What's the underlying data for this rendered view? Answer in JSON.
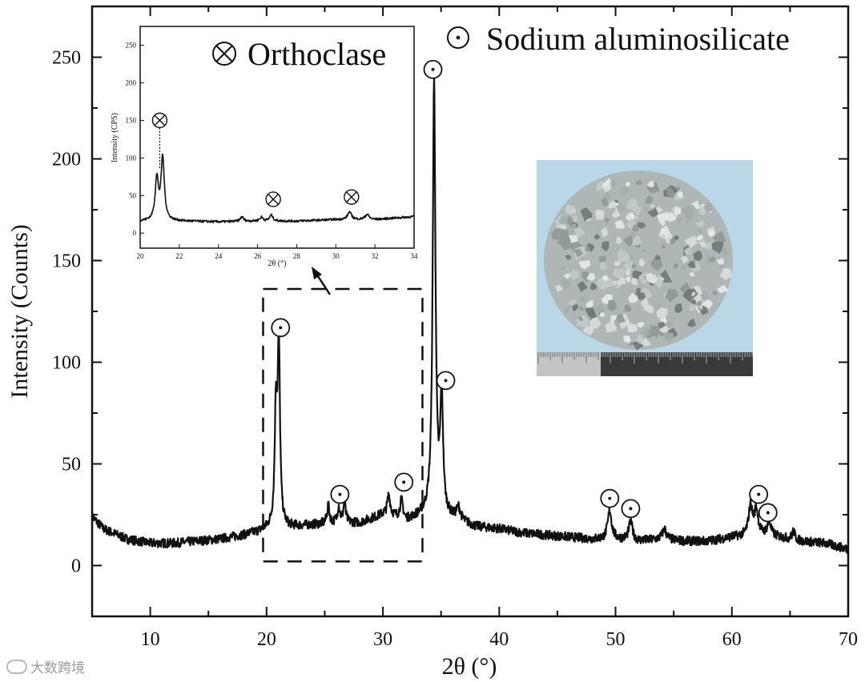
{
  "chart_data": {
    "type": "line",
    "xlabel": "2θ (°)",
    "ylabel": "Intensity (Counts)",
    "xlim": [
      5,
      70
    ],
    "ylim": [
      -25,
      275
    ],
    "xticks": [
      10,
      20,
      30,
      40,
      50,
      60,
      70
    ],
    "yticks": [
      0,
      50,
      100,
      150,
      200,
      250
    ],
    "grid": false,
    "legend": [
      {
        "symbol": "circle-dot",
        "label": "Sodium aluminosilicate",
        "placement": "top-right"
      },
      {
        "symbol": "circle-cross",
        "label": "Orthoclase",
        "placement": "top-center"
      }
    ],
    "series": [
      {
        "baseline": [
          [
            5,
            24
          ],
          [
            6,
            18
          ],
          [
            8,
            13
          ],
          [
            10,
            11
          ],
          [
            12,
            11
          ],
          [
            14,
            12
          ],
          [
            16,
            13
          ],
          [
            18,
            15
          ],
          [
            19.5,
            17
          ],
          [
            20.5,
            19
          ],
          [
            22,
            19
          ],
          [
            24,
            20
          ],
          [
            26,
            21
          ],
          [
            28,
            21
          ],
          [
            29,
            23
          ],
          [
            30,
            25
          ],
          [
            31,
            24
          ],
          [
            32,
            22
          ],
          [
            33,
            24
          ],
          [
            34,
            26
          ],
          [
            36,
            23
          ],
          [
            38,
            19
          ],
          [
            40,
            18
          ],
          [
            42,
            16
          ],
          [
            44,
            15
          ],
          [
            46,
            14
          ],
          [
            48,
            13
          ],
          [
            50,
            13
          ],
          [
            52,
            12
          ],
          [
            54,
            13
          ],
          [
            56,
            12
          ],
          [
            58,
            12
          ],
          [
            60,
            14
          ],
          [
            62,
            15
          ],
          [
            64,
            14
          ],
          [
            66,
            12
          ],
          [
            68,
            11
          ],
          [
            70,
            8
          ]
        ],
        "peaks": [
          {
            "x": 20.8,
            "height": 55,
            "width": 0.12
          },
          {
            "x": 21.05,
            "height": 88,
            "width": 0.12
          },
          {
            "x": 25.3,
            "height": 9,
            "width": 0.12
          },
          {
            "x": 26.2,
            "height": 8,
            "width": 0.12
          },
          {
            "x": 26.7,
            "height": 10,
            "width": 0.12
          },
          {
            "x": 30.5,
            "height": 10,
            "width": 0.15
          },
          {
            "x": 31.6,
            "height": 9,
            "width": 0.15
          },
          {
            "x": 34.4,
            "height": 212,
            "width": 0.14
          },
          {
            "x": 35.05,
            "height": 58,
            "width": 0.14
          },
          {
            "x": 36.5,
            "height": 6,
            "width": 0.2
          },
          {
            "x": 49.5,
            "height": 14,
            "width": 0.2
          },
          {
            "x": 51.3,
            "height": 9,
            "width": 0.2
          },
          {
            "x": 54.2,
            "height": 5,
            "width": 0.2
          },
          {
            "x": 61.6,
            "height": 14,
            "width": 0.2
          },
          {
            "x": 62.1,
            "height": 12,
            "width": 0.2
          },
          {
            "x": 63.2,
            "height": 7,
            "width": 0.2
          },
          {
            "x": 65.3,
            "height": 4,
            "width": 0.15
          }
        ]
      }
    ],
    "annotations": [
      {
        "symbol": "circle-dot",
        "x": 21.2,
        "y": 117
      },
      {
        "symbol": "circle-dot",
        "x": 26.3,
        "y": 35
      },
      {
        "symbol": "circle-dot",
        "x": 31.8,
        "y": 41
      },
      {
        "symbol": "circle-dot",
        "x": 34.3,
        "y": 244
      },
      {
        "symbol": "circle-dot",
        "x": 35.4,
        "y": 91
      },
      {
        "symbol": "circle-dot",
        "x": 49.5,
        "y": 33
      },
      {
        "symbol": "circle-dot",
        "x": 51.3,
        "y": 28
      },
      {
        "symbol": "circle-dot",
        "x": 62.3,
        "y": 35
      },
      {
        "symbol": "circle-dot",
        "x": 63.1,
        "y": 26
      }
    ],
    "highlight_region": {
      "x": [
        19.7,
        33.4
      ],
      "y": [
        2,
        136
      ]
    },
    "inset": {
      "type": "line",
      "xlabel": "2θ (°)",
      "ylabel": "Intensity (CPS)",
      "xlim": [
        20,
        34
      ],
      "ylim": [
        -20,
        275
      ],
      "xticks": [
        20,
        22,
        24,
        26,
        28,
        30,
        32,
        34
      ],
      "yticks": [
        0,
        50,
        100,
        150,
        200,
        250
      ],
      "baseline": [
        [
          20,
          16
        ],
        [
          22,
          16
        ],
        [
          24,
          15
        ],
        [
          26,
          16
        ],
        [
          28,
          16
        ],
        [
          30,
          18
        ],
        [
          32,
          18
        ],
        [
          34,
          22
        ]
      ],
      "peaks": [
        {
          "x": 20.85,
          "height": 55,
          "width": 0.1
        },
        {
          "x": 21.15,
          "height": 84,
          "width": 0.1
        },
        {
          "x": 25.2,
          "height": 6,
          "width": 0.1
        },
        {
          "x": 26.2,
          "height": 5,
          "width": 0.1
        },
        {
          "x": 26.7,
          "height": 8,
          "width": 0.1
        },
        {
          "x": 30.7,
          "height": 10,
          "width": 0.12
        },
        {
          "x": 31.6,
          "height": 7,
          "width": 0.12
        }
      ],
      "annotations": [
        {
          "symbol": "circle-cross",
          "x": 21.0,
          "y": 150
        },
        {
          "symbol": "circle-cross",
          "x": 26.8,
          "y": 45
        },
        {
          "symbol": "circle-cross",
          "x": 30.8,
          "y": 48
        }
      ]
    }
  },
  "watermark": "大数跨境"
}
